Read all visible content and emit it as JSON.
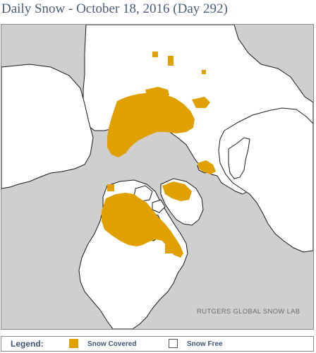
{
  "title": "Daily Snow - October 18, 2016 (Day 292)",
  "map": {
    "watermark": "RUTGERS GLOBAL SNOW LAB",
    "ocean_color": "#cfcfcf",
    "land_color": "#ffffff",
    "snow_color": "#e0a100",
    "border_color": "#1a1a1a"
  },
  "legend": {
    "title": "Legend:",
    "snow_covered_label": "Snow Covered",
    "snow_free_label": "Snow Free"
  }
}
